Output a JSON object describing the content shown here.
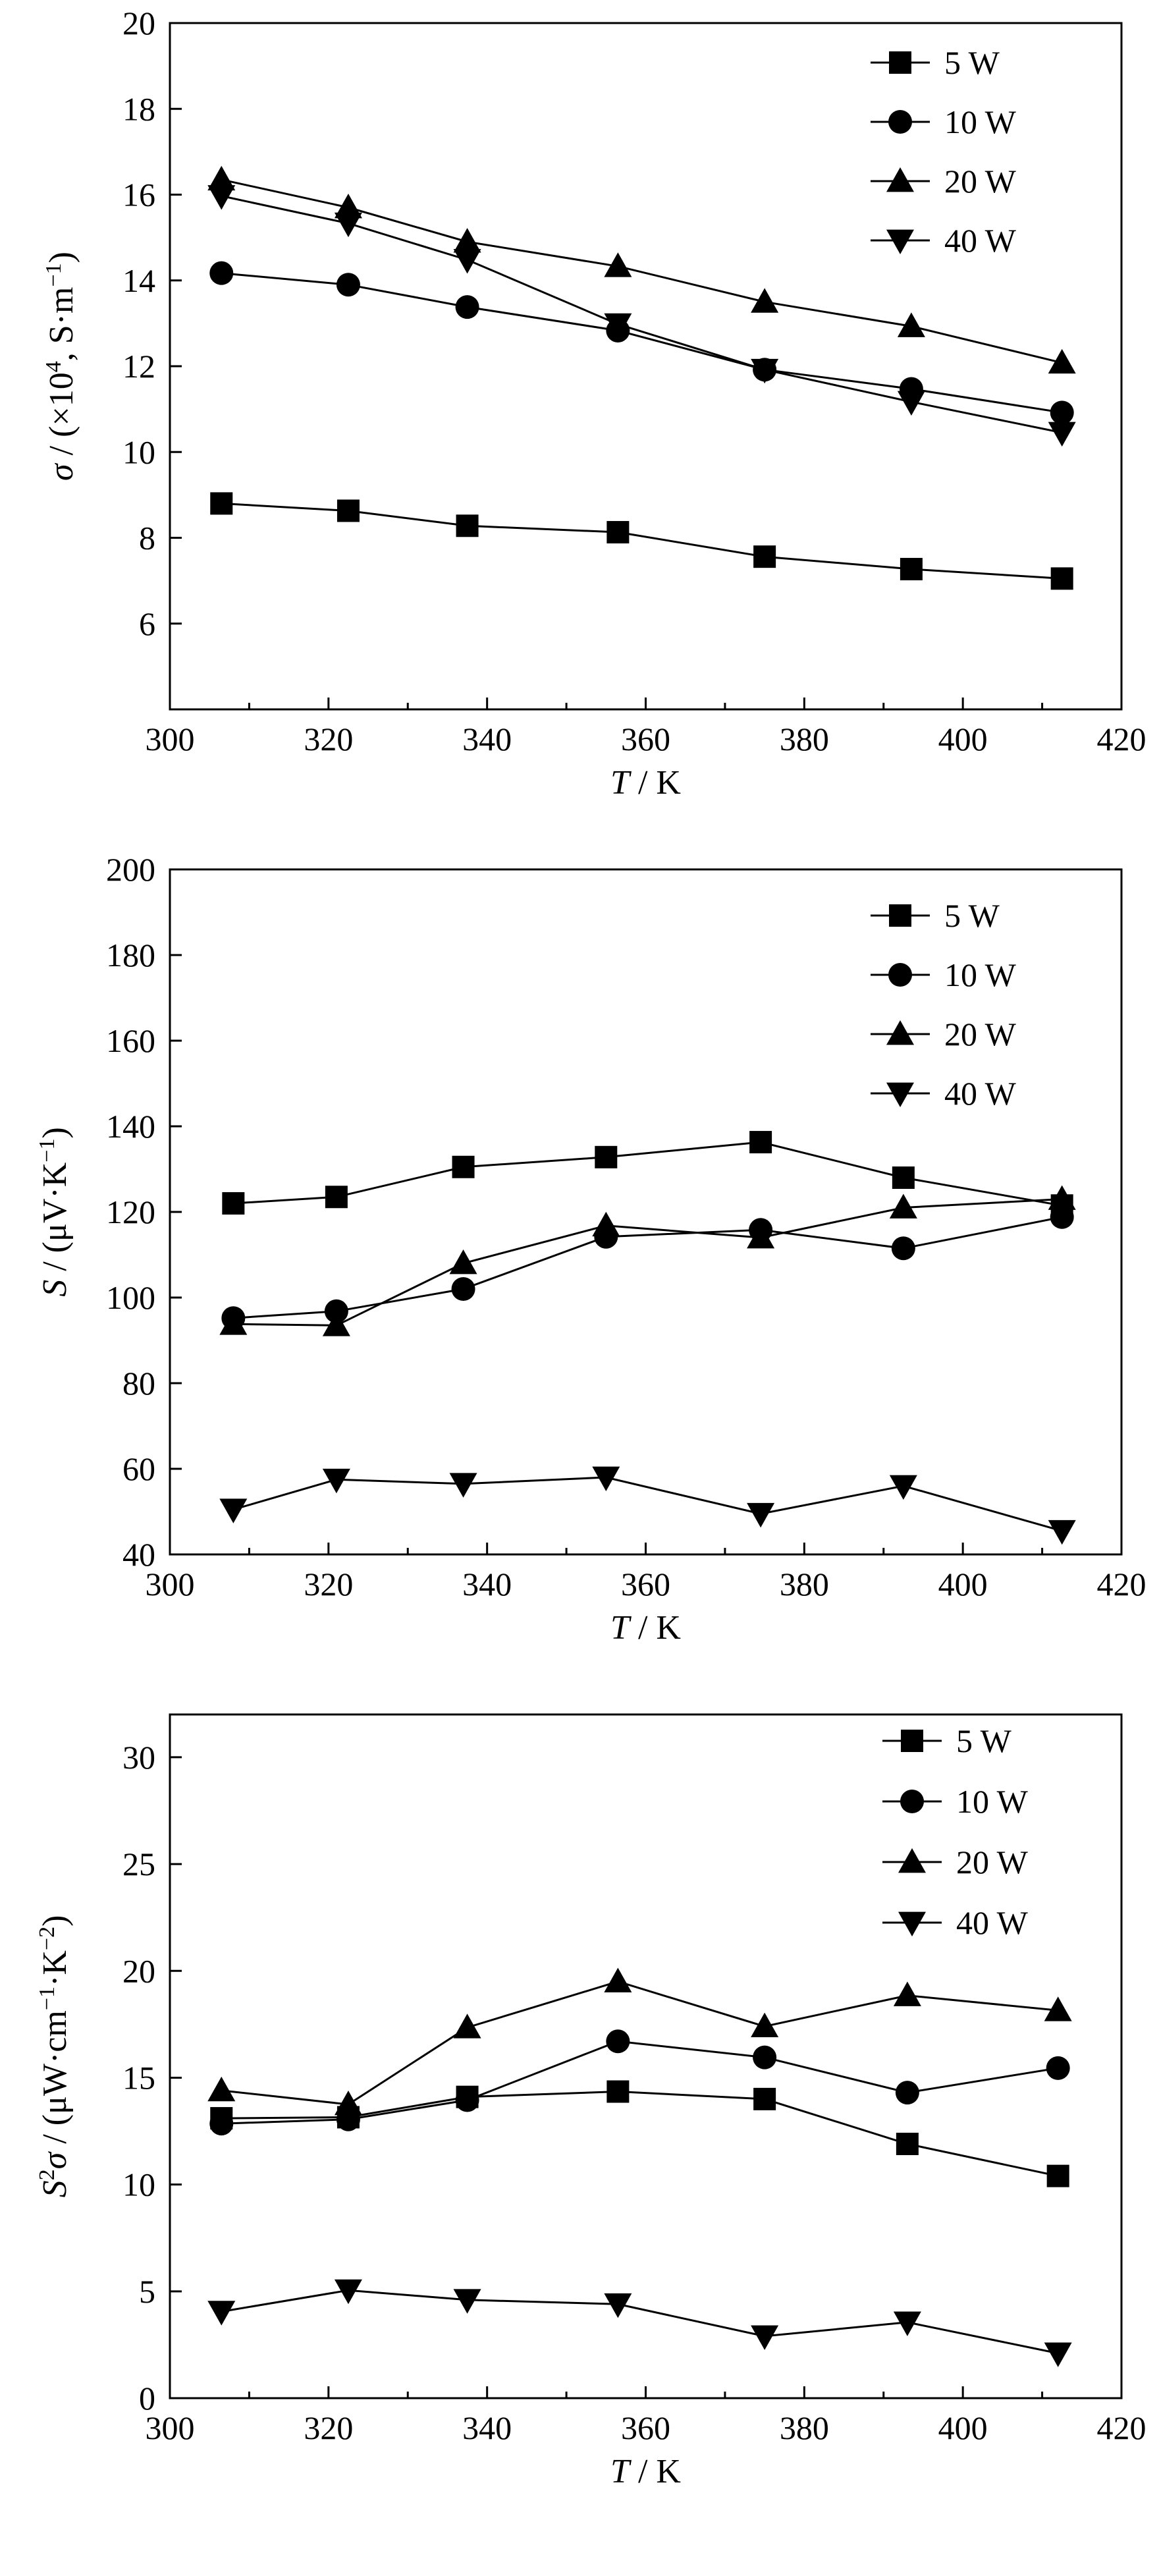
{
  "chart_data": [
    {
      "type": "line",
      "ylabel_parts": [
        "σ",
        " / (×10",
        "4",
        ", S·m",
        "−1",
        ")"
      ],
      "xlabel_parts": [
        "T",
        " / K"
      ],
      "xlim": [
        300,
        420
      ],
      "ylim": [
        4,
        20
      ],
      "xticks": [
        300,
        320,
        340,
        360,
        380,
        400,
        420
      ],
      "yticks": [
        6,
        8,
        10,
        12,
        14,
        16,
        18,
        20
      ],
      "legend_position": "top-right",
      "series": [
        {
          "name": "5 W",
          "marker": "square",
          "points": [
            [
              306.5,
              8.8
            ],
            [
              322.5,
              8.63
            ],
            [
              337.5,
              8.28
            ],
            [
              356.5,
              8.13
            ],
            [
              375,
              7.56
            ],
            [
              393.5,
              7.27
            ],
            [
              412.5,
              7.05
            ]
          ]
        },
        {
          "name": "10 W",
          "marker": "circle",
          "points": [
            [
              306.5,
              14.17
            ],
            [
              322.5,
              13.9
            ],
            [
              337.5,
              13.38
            ],
            [
              356.5,
              12.83
            ],
            [
              375,
              11.92
            ],
            [
              393.5,
              11.47
            ],
            [
              412.5,
              10.92
            ]
          ]
        },
        {
          "name": "20 W",
          "marker": "triangle-up",
          "points": [
            [
              306.5,
              16.35
            ],
            [
              322.5,
              15.7
            ],
            [
              337.5,
              14.9
            ],
            [
              356.5,
              14.33
            ],
            [
              375,
              13.5
            ],
            [
              393.5,
              12.93
            ],
            [
              412.5,
              12.08
            ]
          ]
        },
        {
          "name": "40 W",
          "marker": "triangle-down",
          "points": [
            [
              306.5,
              15.97
            ],
            [
              322.5,
              15.33
            ],
            [
              337.5,
              14.48
            ],
            [
              356.5,
              12.98
            ],
            [
              375,
              11.92
            ],
            [
              393.5,
              11.17
            ],
            [
              412.5,
              10.45
            ]
          ]
        }
      ]
    },
    {
      "type": "line",
      "ylabel_parts": [
        "S",
        " / (μV·K",
        "−1",
        ")"
      ],
      "xlabel_parts": [
        "T",
        " / K"
      ],
      "xlim": [
        300,
        420
      ],
      "ylim": [
        40,
        200
      ],
      "xticks": [
        300,
        320,
        340,
        360,
        380,
        400,
        420
      ],
      "yticks": [
        40,
        60,
        80,
        100,
        120,
        140,
        160,
        180,
        200
      ],
      "legend_position": "top-right",
      "series": [
        {
          "name": "5 W",
          "marker": "square",
          "points": [
            [
              308,
              122
            ],
            [
              321,
              123.5
            ],
            [
              337,
              130.5
            ],
            [
              355,
              132.8
            ],
            [
              374.5,
              136.3
            ],
            [
              392.5,
              128
            ],
            [
              412.5,
              121.5
            ]
          ]
        },
        {
          "name": "10 W",
          "marker": "circle",
          "points": [
            [
              308,
              95.2
            ],
            [
              321,
              96.8
            ],
            [
              337,
              102
            ],
            [
              355,
              114.2
            ],
            [
              374.5,
              115.8
            ],
            [
              392.5,
              111.5
            ],
            [
              412.5,
              118.8
            ]
          ]
        },
        {
          "name": "20 W",
          "marker": "triangle-up",
          "points": [
            [
              308,
              93.8
            ],
            [
              321,
              93.5
            ],
            [
              337,
              108
            ],
            [
              355,
              116.8
            ],
            [
              374.5,
              114
            ],
            [
              392.5,
              121
            ],
            [
              412.5,
              123
            ]
          ]
        },
        {
          "name": "40 W",
          "marker": "triangle-down",
          "points": [
            [
              308,
              50.5
            ],
            [
              321,
              57.5
            ],
            [
              337,
              56.5
            ],
            [
              355,
              58
            ],
            [
              374.5,
              49.5
            ],
            [
              392.5,
              56
            ],
            [
              412.5,
              45.5
            ]
          ]
        }
      ]
    },
    {
      "type": "line",
      "ylabel_parts": [
        "S",
        "2",
        "σ",
        " / (μW·cm",
        "−1",
        "·K",
        "−2",
        ")"
      ],
      "xlabel_parts": [
        "T",
        " / K"
      ],
      "xlim": [
        300,
        420
      ],
      "ylim": [
        0,
        32
      ],
      "xticks": [
        300,
        320,
        340,
        360,
        380,
        400,
        420
      ],
      "yticks": [
        0,
        5,
        10,
        15,
        20,
        25,
        30
      ],
      "legend_position": "top-right",
      "series": [
        {
          "name": "5 W",
          "marker": "square",
          "points": [
            [
              306.5,
              13.1
            ],
            [
              322.5,
              13.15
            ],
            [
              337.5,
              14.1
            ],
            [
              356.5,
              14.35
            ],
            [
              375,
              14
            ],
            [
              393,
              11.9
            ],
            [
              412,
              10.4
            ]
          ]
        },
        {
          "name": "10 W",
          "marker": "circle",
          "points": [
            [
              306.5,
              12.85
            ],
            [
              322.5,
              13.05
            ],
            [
              337.5,
              13.95
            ],
            [
              356.5,
              16.7
            ],
            [
              375,
              15.95
            ],
            [
              393,
              14.3
            ],
            [
              412,
              15.45
            ]
          ]
        },
        {
          "name": "20 W",
          "marker": "triangle-up",
          "points": [
            [
              306.5,
              14.4
            ],
            [
              322.5,
              13.75
            ],
            [
              337.5,
              17.35
            ],
            [
              356.5,
              19.5
            ],
            [
              375,
              17.4
            ],
            [
              393,
              18.85
            ],
            [
              412,
              18.15
            ]
          ]
        },
        {
          "name": "40 W",
          "marker": "triangle-down",
          "points": [
            [
              306.5,
              4.05
            ],
            [
              322.5,
              5.05
            ],
            [
              337.5,
              4.6
            ],
            [
              356.5,
              4.4
            ],
            [
              375,
              2.9
            ],
            [
              393,
              3.55
            ],
            [
              412,
              2.1
            ]
          ]
        }
      ]
    }
  ]
}
